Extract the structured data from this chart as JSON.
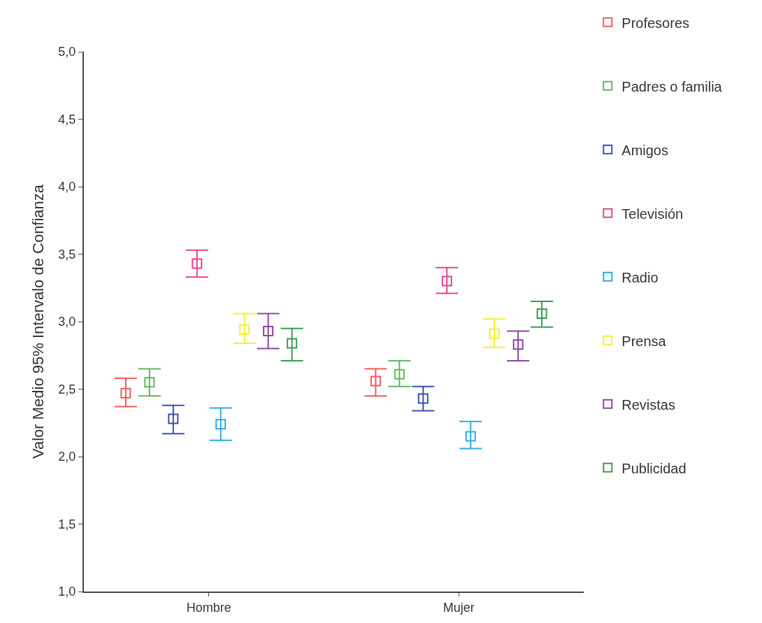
{
  "chart_data": {
    "type": "scatter",
    "ylabel": "Valor Medio 95% Intervalo de Confianza",
    "categories": [
      "Hombre",
      "Mujer"
    ],
    "ylim": [
      1.0,
      5.0
    ],
    "yticks": [
      {
        "value": 1.0,
        "label": "1,0"
      },
      {
        "value": 1.5,
        "label": "1,5"
      },
      {
        "value": 2.0,
        "label": "2,0"
      },
      {
        "value": 2.5,
        "label": "2,5"
      },
      {
        "value": 3.0,
        "label": "3,0"
      },
      {
        "value": 3.5,
        "label": "3,5"
      },
      {
        "value": 4.0,
        "label": "4,0"
      },
      {
        "value": 4.5,
        "label": "4,5"
      },
      {
        "value": 5.0,
        "label": "5,0"
      }
    ],
    "marker": "square",
    "legend": "right",
    "series": [
      {
        "name": "Profesores",
        "color": "#f05a5a",
        "values": [
          2.47,
          2.56
        ],
        "errors": [
          [
            2.37,
            2.58
          ],
          [
            2.45,
            2.65
          ]
        ]
      },
      {
        "name": "Padres o familia",
        "color": "#5cb85c",
        "values": [
          2.55,
          2.61
        ],
        "errors": [
          [
            2.45,
            2.65
          ],
          [
            2.52,
            2.71
          ]
        ]
      },
      {
        "name": "Amigos",
        "color": "#3a4fb0",
        "values": [
          2.28,
          2.43
        ],
        "errors": [
          [
            2.17,
            2.38
          ],
          [
            2.34,
            2.52
          ]
        ]
      },
      {
        "name": "Televisión",
        "color": "#e8428c",
        "values": [
          3.43,
          3.3
        ],
        "errors": [
          [
            3.33,
            3.53
          ],
          [
            3.21,
            3.4
          ]
        ]
      },
      {
        "name": "Radio",
        "color": "#29abe2",
        "values": [
          2.24,
          2.15
        ],
        "errors": [
          [
            2.12,
            2.36
          ],
          [
            2.06,
            2.26
          ]
        ]
      },
      {
        "name": "Prensa",
        "color": "#f5f032",
        "values": [
          2.94,
          2.91
        ],
        "errors": [
          [
            2.84,
            3.06
          ],
          [
            2.81,
            3.02
          ]
        ]
      },
      {
        "name": "Revistas",
        "color": "#8e44a0",
        "values": [
          2.93,
          2.83
        ],
        "errors": [
          [
            2.8,
            3.06
          ],
          [
            2.71,
            2.93
          ]
        ]
      },
      {
        "name": "Publicidad",
        "color": "#3c9a50",
        "values": [
          2.84,
          3.06
        ],
        "errors": [
          [
            2.71,
            2.95
          ],
          [
            2.96,
            3.15
          ]
        ]
      }
    ]
  }
}
